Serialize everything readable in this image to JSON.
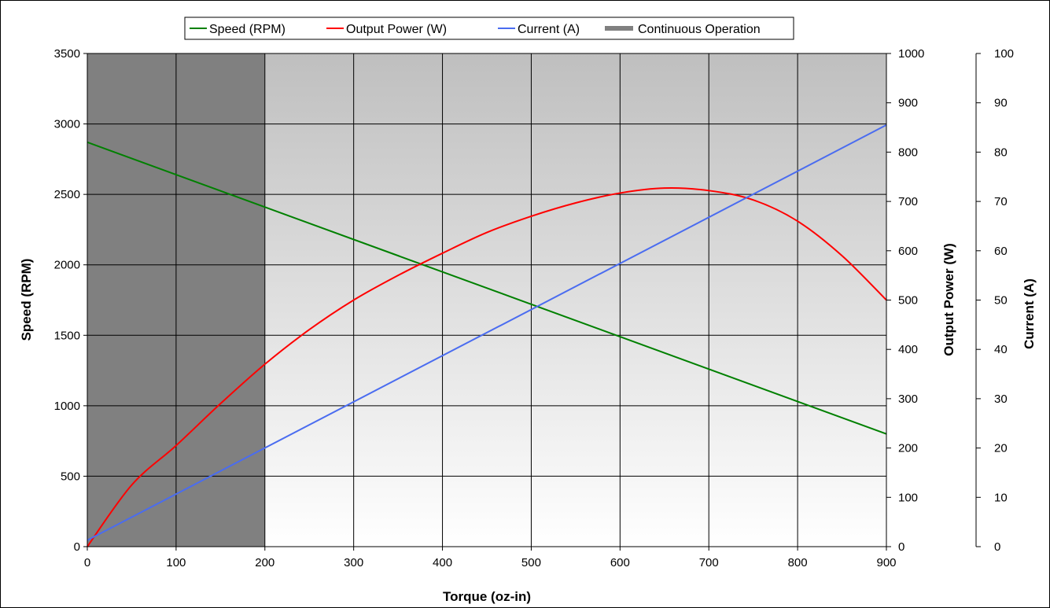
{
  "chart_data": {
    "type": "line",
    "title": "",
    "xlabel": "Torque (oz-in)",
    "xlim": [
      0,
      900
    ],
    "xticks": [
      0,
      100,
      200,
      300,
      400,
      500,
      600,
      700,
      800,
      900
    ],
    "y_axes": [
      {
        "id": "speed",
        "label": "Speed (RPM)",
        "side": "left",
        "ylim": [
          0,
          3500
        ],
        "ticks": [
          0,
          500,
          1000,
          1500,
          2000,
          2500,
          3000,
          3500
        ]
      },
      {
        "id": "power",
        "label": "Output Power (W)",
        "side": "right",
        "ylim": [
          0,
          1000
        ],
        "ticks": [
          0,
          100,
          200,
          300,
          400,
          500,
          600,
          700,
          800,
          900,
          1000
        ]
      },
      {
        "id": "current",
        "label": "Current (A)",
        "side": "right-outer",
        "ylim": [
          0,
          100
        ],
        "ticks": [
          0,
          10,
          20,
          30,
          40,
          50,
          60,
          70,
          80,
          90,
          100
        ]
      }
    ],
    "grid": true,
    "legend_position": "top-center",
    "series": [
      {
        "name": "Speed (RPM)",
        "axis": "speed",
        "color": "#008000",
        "x": [
          0,
          900
        ],
        "y": [
          2870,
          800
        ]
      },
      {
        "name": "Output Power (W)",
        "axis": "power",
        "color": "#ff0000",
        "x": [
          0,
          50,
          100,
          150,
          200,
          250,
          300,
          350,
          400,
          450,
          500,
          550,
          600,
          650,
          700,
          750,
          800,
          850,
          900
        ],
        "y": [
          0,
          125,
          205,
          290,
          370,
          440,
          500,
          550,
          595,
          637,
          670,
          697,
          717,
          727,
          722,
          703,
          660,
          590,
          500
        ]
      },
      {
        "name": "Current (A)",
        "axis": "current",
        "color": "#4a6cf0",
        "x": [
          0,
          900
        ],
        "y": [
          1.3,
          85.5
        ]
      },
      {
        "name": "Continuous Operation",
        "axis": "speed",
        "color": "#808080",
        "kind": "area",
        "x": [
          0,
          200
        ],
        "y": [
          3500,
          3500
        ]
      }
    ]
  }
}
